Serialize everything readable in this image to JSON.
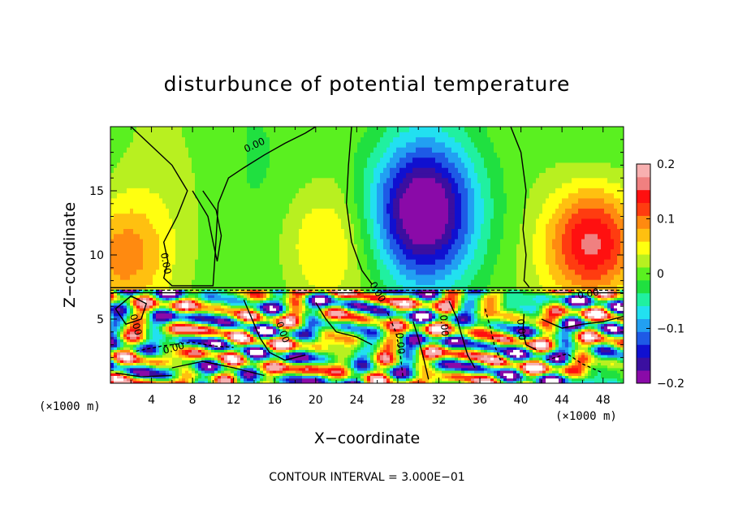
{
  "chart_data": {
    "type": "heatmap",
    "title": "disturbunce of potential temperature",
    "xlabel": "X−coordinate",
    "ylabel": "Z−coordinate",
    "x_unit": "(×1000 m)",
    "y_unit": "(×1000 m)",
    "xlim": [
      0,
      50
    ],
    "ylim": [
      0,
      20
    ],
    "x_ticks": [
      4,
      8,
      12,
      16,
      20,
      24,
      28,
      32,
      36,
      40,
      44,
      48
    ],
    "y_ticks": [
      5,
      10,
      15
    ],
    "colorbar": {
      "range": [
        -0.2,
        0.2
      ],
      "tick_values": [
        0.2,
        0.1,
        0,
        -0.1,
        -0.2
      ],
      "tick_labels": [
        "0.2",
        "0.1",
        "0",
        "−0.1",
        "−0.2"
      ],
      "colors": [
        "#8a0aa8",
        "#3b0fa0",
        "#1010d0",
        "#1e5ae6",
        "#22a0f2",
        "#22e0f0",
        "#20f0a0",
        "#20e040",
        "#5af020",
        "#b8f020",
        "#ffff10",
        "#ffc010",
        "#ff8a10",
        "#ff3c10",
        "#ff1010",
        "#f08080",
        "#f8b0b0"
      ]
    },
    "contour_labels": [
      "0.00",
      "0.00",
      "0.00",
      "0.00",
      "0.00",
      "0.00",
      "0.00",
      "0.00",
      "0.00",
      "0.00"
    ],
    "contour_interval_text": "CONTOUR INTERVAL = 3.000E−01",
    "upper_layer_features": [
      {
        "x_center": 30.5,
        "z_center": 13.5,
        "amplitude": -0.22
      },
      {
        "x_center": 47,
        "z_center": 11,
        "amplitude": 0.17
      },
      {
        "x_center": 21,
        "z_center": 11,
        "amplitude": 0.06
      },
      {
        "x_center": 1,
        "z_center": 10,
        "amplitude": 0.09
      },
      {
        "x_center": 8,
        "z_center": 16,
        "amplitude": 0.0
      }
    ],
    "layer_boundary_z": 7.3
  }
}
